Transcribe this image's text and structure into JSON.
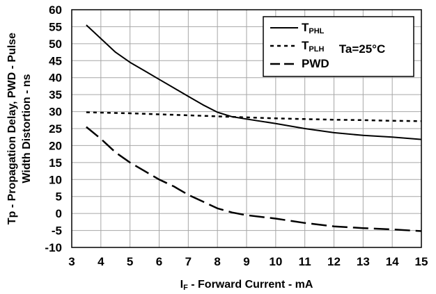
{
  "chart_data": {
    "type": "line",
    "title": "",
    "xlabel": {
      "main": "I",
      "sub": "F",
      "rest": " - Forward Current - mA"
    },
    "ylabel": [
      "Tp - Propagation Delay, PWD - Pulse",
      "Width Distortion - ns"
    ],
    "xlim": [
      3,
      15
    ],
    "ylim": [
      -10,
      60
    ],
    "x_ticks": [
      "3",
      "4",
      "5",
      "6",
      "7",
      "8",
      "9",
      "10",
      "11",
      "12",
      "13",
      "14",
      "15"
    ],
    "y_ticks": [
      "60",
      "55",
      "50",
      "45",
      "40",
      "35",
      "30",
      "25",
      "20",
      "15",
      "10",
      "5",
      "0",
      "-5",
      "-10"
    ],
    "grid": true,
    "legend_position": "top-right",
    "annotation": "Ta=25°C",
    "series": [
      {
        "name": {
          "main": "T",
          "sub": "PHL"
        },
        "style": "solid",
        "x": [
          3.5,
          4,
          4.5,
          5,
          5.5,
          6,
          6.5,
          7,
          7.5,
          8,
          8.5,
          9,
          10,
          11,
          12,
          13,
          14,
          15
        ],
        "y": [
          55.5,
          51.5,
          47.5,
          44.5,
          42,
          39.5,
          37,
          34.5,
          32,
          29.8,
          28.5,
          27.8,
          26.5,
          25,
          23.8,
          23,
          22.5,
          21.8
        ]
      },
      {
        "name": {
          "main": "T",
          "sub": "PLH"
        },
        "style": "dotted",
        "x": [
          3.5,
          4,
          5,
          6,
          7,
          8,
          9,
          10,
          11,
          12,
          13,
          14,
          15
        ],
        "y": [
          29.8,
          29.7,
          29.5,
          29.2,
          28.9,
          28.6,
          28.3,
          28,
          27.8,
          27.6,
          27.5,
          27.3,
          27.2
        ]
      },
      {
        "name": {
          "main": "PWD",
          "sub": ""
        },
        "style": "dashed",
        "x": [
          3.5,
          4,
          4.5,
          5,
          5.5,
          6,
          6.5,
          7,
          7.5,
          8,
          8.5,
          9,
          10,
          11,
          12,
          13,
          14,
          15
        ],
        "y": [
          25.5,
          22,
          18,
          15,
          12.5,
          10,
          8,
          5.5,
          3.5,
          1.5,
          0.3,
          -0.5,
          -1.5,
          -2.8,
          -3.8,
          -4.3,
          -4.7,
          -5.2
        ]
      }
    ]
  }
}
